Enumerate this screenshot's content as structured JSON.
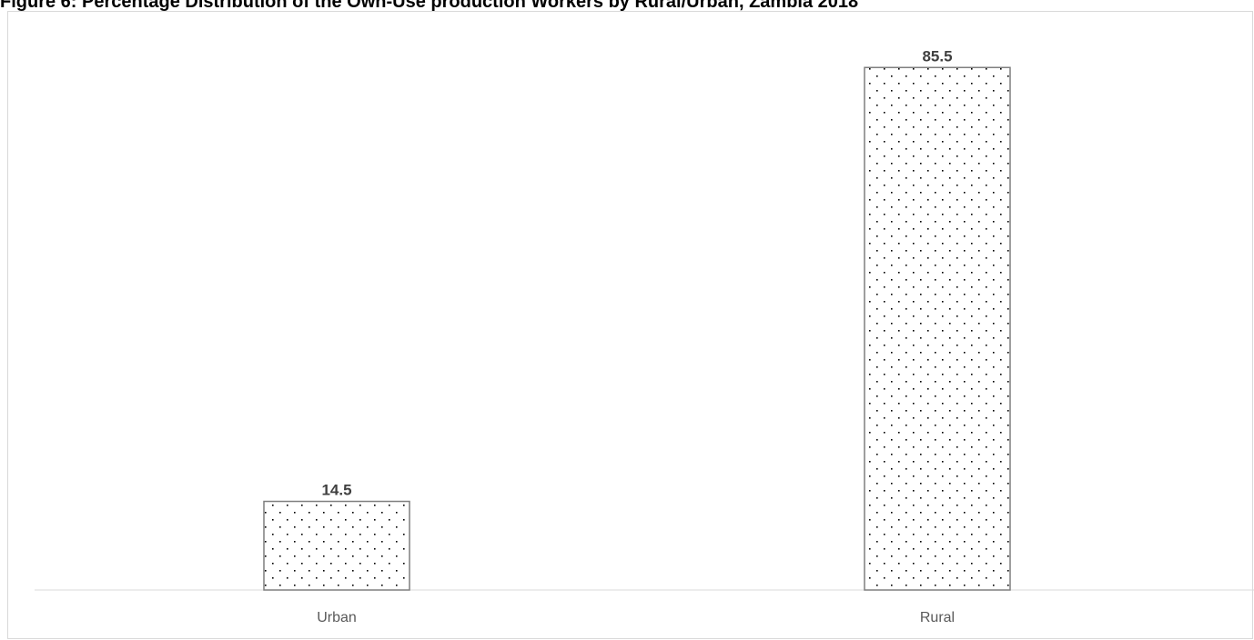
{
  "chart_data": {
    "type": "bar",
    "title": "Figure 6: Percentage Distribution of the Own-Use production Workers by Rural/Urban, Zambia 2018",
    "categories": [
      "Urban",
      "Rural"
    ],
    "values": [
      14.5,
      85.5
    ],
    "data_labels": [
      "14.5",
      "85.5"
    ],
    "ylim": [
      0,
      90
    ],
    "xlabel": "",
    "ylabel": "",
    "grid": false,
    "legend": "none",
    "bar_fill": "dotted-pattern",
    "colors": {
      "bar_border": "#7f7f7f",
      "dots": "#000000",
      "axis": "#d9d9d9",
      "label_text": "#595959",
      "value_text": "#404040"
    }
  }
}
